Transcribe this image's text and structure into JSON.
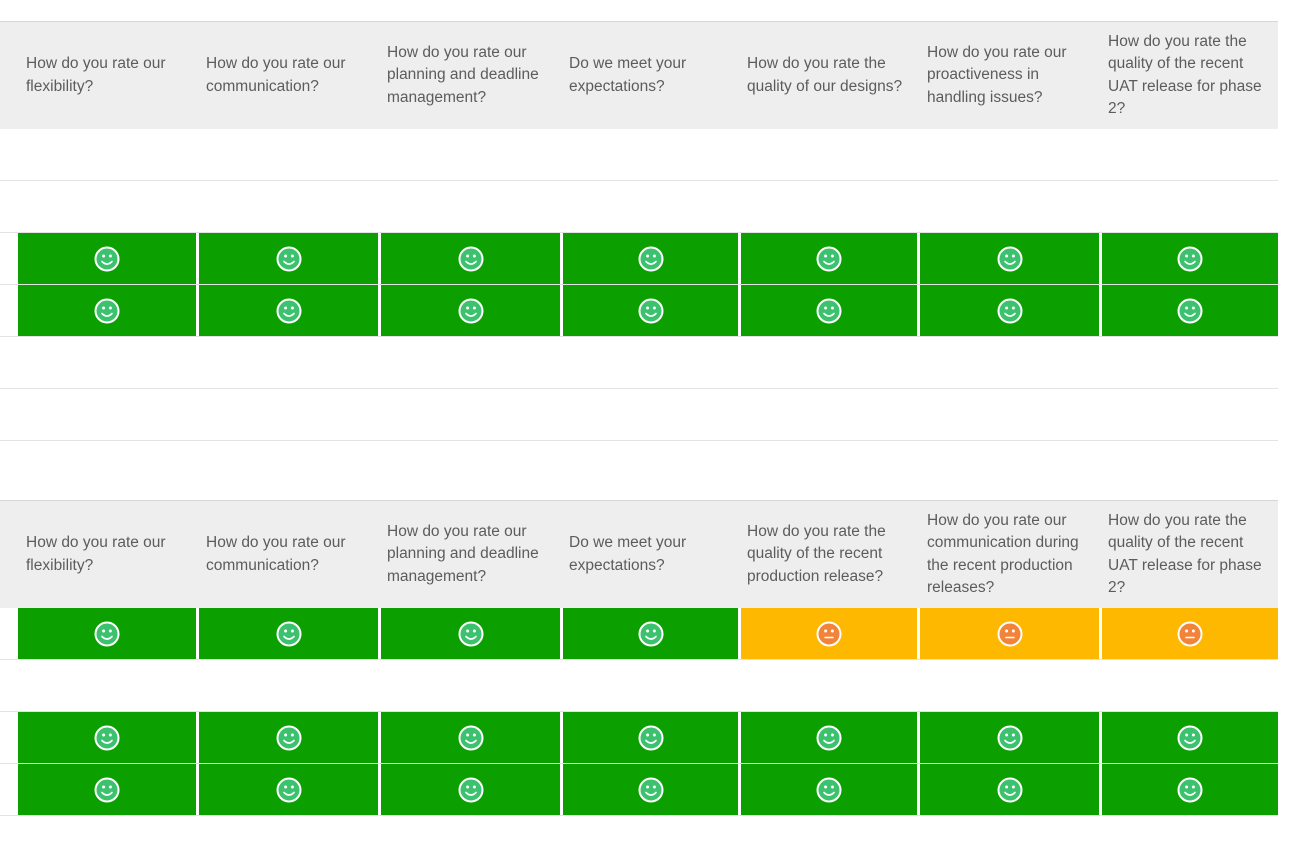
{
  "colors": {
    "good": "#0ba000",
    "neutral": "#ffb800",
    "happy_face": "#3cc26e",
    "neutral_face": "#f2843a"
  },
  "tables": [
    {
      "headers": [
        "How do you rate our flexibility?",
        "How do you rate our communication?",
        "How do you rate our planning and deadline management?",
        "Do we meet your expectations?",
        "How do you rate the quality of our designs?",
        "How do you rate our proactiveness in handling issues?",
        "How do you rate the quality of the recent UAT release for phase 2?"
      ],
      "rows": [
        [
          "",
          "",
          "",
          "",
          "",
          "",
          ""
        ],
        [
          "",
          "",
          "",
          "",
          "",
          "",
          ""
        ],
        [
          "happy",
          "happy",
          "happy",
          "happy",
          "happy",
          "happy",
          "happy"
        ],
        [
          "happy",
          "happy",
          "happy",
          "happy",
          "happy",
          "happy",
          "happy"
        ],
        [
          "",
          "",
          "",
          "",
          "",
          "",
          ""
        ],
        [
          "",
          "",
          "",
          "",
          "",
          "",
          ""
        ]
      ]
    },
    {
      "headers": [
        "How do you rate our flexibility?",
        "How do you rate our communication?",
        "How do you rate our planning and deadline management?",
        "Do we meet your expectations?",
        "How do you rate the quality of the recent production release?",
        "How do you rate our communication during the recent production releases?",
        "How do you rate the quality of the recent UAT release for phase 2?"
      ],
      "rows": [
        [
          "happy",
          "happy",
          "happy",
          "happy",
          "neutral",
          "neutral",
          "neutral"
        ],
        [
          "",
          "",
          "",
          "",
          "",
          "",
          ""
        ],
        [
          "happy",
          "happy",
          "happy",
          "happy",
          "happy",
          "happy",
          "happy"
        ],
        [
          "happy",
          "happy",
          "happy",
          "happy",
          "happy",
          "happy",
          "happy"
        ]
      ]
    }
  ]
}
